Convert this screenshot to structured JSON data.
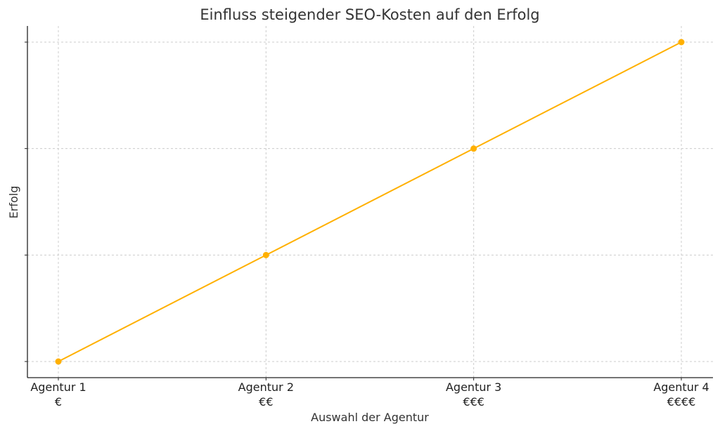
{
  "chart_data": {
    "type": "line",
    "title": "Einfluss steigender SEO-Kosten auf den Erfolg",
    "xlabel": "Auswahl der Agentur",
    "ylabel": "Erfolg",
    "categories": [
      {
        "name": "Agentur 1",
        "cost": "€"
      },
      {
        "name": "Agentur 2",
        "cost": "€€"
      },
      {
        "name": "Agentur 3",
        "cost": "€€€"
      },
      {
        "name": "Agentur 4",
        "cost": "€€€€"
      }
    ],
    "series": [
      {
        "values": [
          1,
          2,
          3,
          4
        ],
        "color": "#FFB000"
      }
    ],
    "ylim": [
      1,
      4
    ],
    "y_ticks": [
      1,
      2,
      3,
      4
    ],
    "y_tick_labels_visible": false,
    "grid": true,
    "colors": {
      "line": "#FFB000",
      "grid": "#cccccc",
      "axis": "#222222",
      "text": "#333333"
    }
  }
}
